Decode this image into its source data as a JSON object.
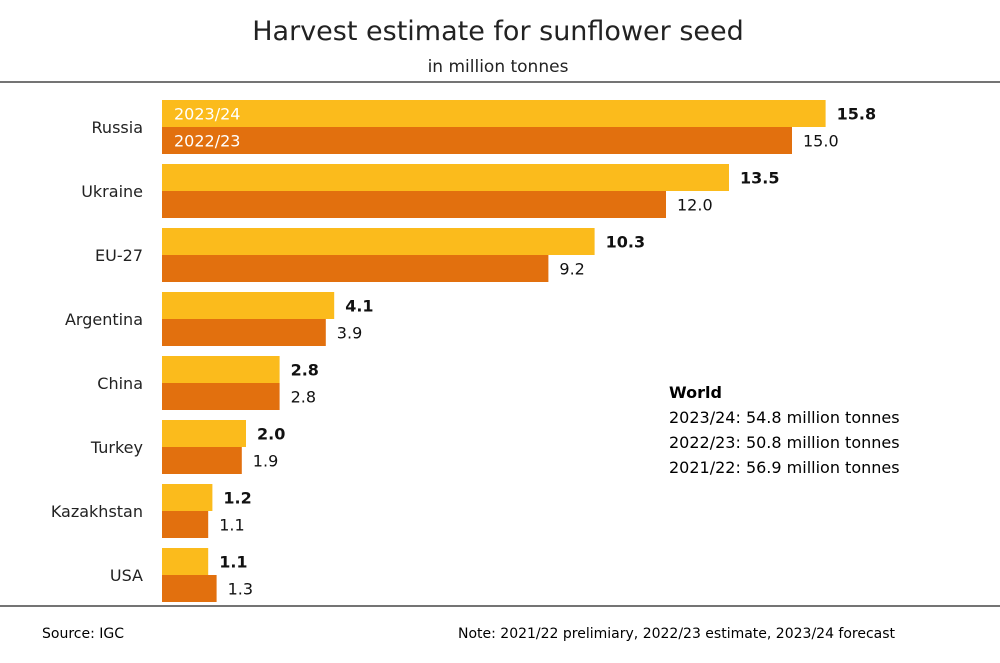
{
  "chart_data": {
    "type": "bar",
    "orientation": "horizontal",
    "title": "Harvest estimate for sunflower seed",
    "subtitle": "in million tonnes",
    "categories": [
      "Russia",
      "Ukraine",
      "EU-27",
      "Argentina",
      "China",
      "Turkey",
      "Kazakhstan",
      "USA"
    ],
    "series": [
      {
        "name": "2023/24",
        "color": "#FBBB1C",
        "values": [
          15.8,
          13.5,
          10.3,
          4.1,
          2.8,
          2.0,
          1.2,
          1.1
        ],
        "labels": [
          "15.8",
          "13.5",
          "10.3",
          "4.1",
          "2.8",
          "2.0",
          "1.2",
          "1.1"
        ]
      },
      {
        "name": "2022/23",
        "color": "#E2700E",
        "values": [
          15.0,
          12.0,
          9.2,
          3.9,
          2.8,
          1.9,
          1.1,
          1.3
        ],
        "labels": [
          "15.0",
          "12.0",
          "9.2",
          "3.9",
          "2.8",
          "1.9",
          "1.1",
          "1.3"
        ]
      }
    ],
    "xlim": [
      0,
      16
    ],
    "grid": false,
    "legend": "inside first bars",
    "annotation": {
      "heading": "World",
      "lines": [
        "2023/24: 54.8 million tonnes",
        "2022/23: 50.8 million tonnes",
        "2021/22: 56.9 million tonnes"
      ]
    },
    "source": "Source:  IGC",
    "note": "Note: 2021/22 prelimiary, 2022/23 estimate, 2023/24 forecast"
  }
}
